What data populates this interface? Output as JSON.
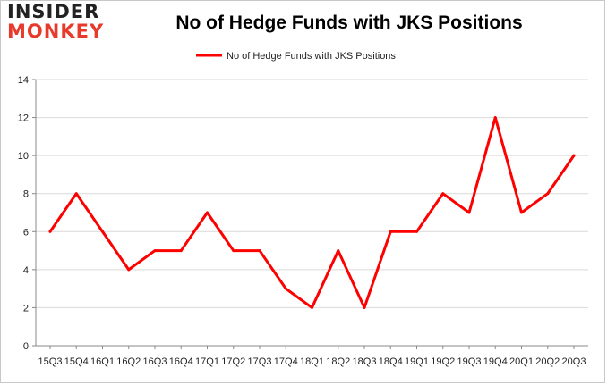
{
  "brand": {
    "logo_top": "INSIDER",
    "logo_bottom": "MONKEY"
  },
  "colors": {
    "line": "#ff0000",
    "grid": "#d9d9d9",
    "axis": "#888888",
    "logo_accent": "#e8392b"
  },
  "chart_data": {
    "type": "line",
    "title": "No of Hedge Funds with JKS Positions",
    "xlabel": "",
    "ylabel": "",
    "ylim": [
      0,
      14
    ],
    "yticks": [
      0,
      2,
      4,
      6,
      8,
      10,
      12,
      14
    ],
    "grid": true,
    "legend_position": "top-center",
    "categories": [
      "15Q3",
      "15Q4",
      "16Q1",
      "16Q2",
      "16Q3",
      "16Q4",
      "17Q1",
      "17Q2",
      "17Q3",
      "17Q4",
      "18Q1",
      "18Q2",
      "18Q3",
      "18Q4",
      "19Q1",
      "19Q2",
      "19Q3",
      "19Q4",
      "20Q1",
      "20Q2",
      "20Q3"
    ],
    "series": [
      {
        "name": "No of Hedge Funds with JKS Positions",
        "values": [
          6,
          8,
          6,
          4,
          5,
          5,
          7,
          5,
          5,
          3,
          2,
          5,
          2,
          6,
          6,
          8,
          7,
          12,
          7,
          8,
          10
        ]
      }
    ]
  }
}
